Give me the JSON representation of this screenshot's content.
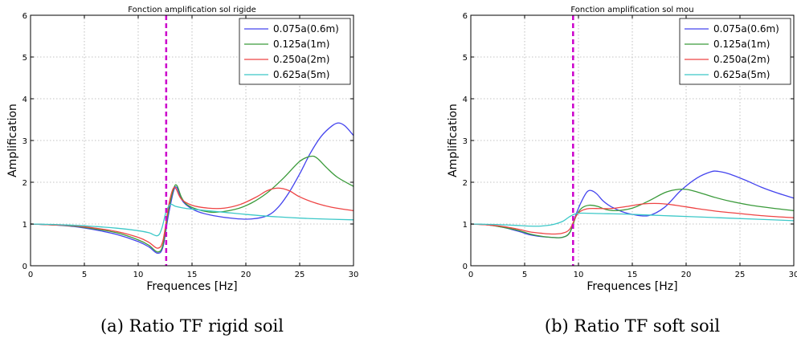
{
  "chart_data": [
    {
      "type": "line",
      "title": "Fonction amplification sol rigide",
      "xlabel": "Frequences [Hz]",
      "ylabel": "Amplification",
      "caption": "(a) Ratio TF rigid soil",
      "xlim": [
        0,
        30
      ],
      "ylim": [
        0,
        6
      ],
      "xticks": [
        "0",
        "5",
        "10",
        "15",
        "20",
        "25",
        "30"
      ],
      "yticks": [
        "0",
        "1",
        "2",
        "3",
        "4",
        "5",
        "6"
      ],
      "grid": true,
      "legend_position": "top-right",
      "vline": {
        "x": 12.6,
        "color": "#cc00cc"
      },
      "series": [
        {
          "name": "0.075a(0.6m)",
          "color": "#4444ee",
          "x": [
            0,
            2,
            4,
            6,
            8,
            10,
            11,
            11.8,
            12.3,
            12.8,
            13.3,
            13.6,
            14,
            14.5,
            15.5,
            17,
            19,
            20.5,
            22,
            23,
            24,
            25,
            26,
            27,
            28,
            28.6,
            29.2,
            30
          ],
          "y": [
            1,
            0.98,
            0.94,
            0.86,
            0.75,
            0.58,
            0.45,
            0.3,
            0.45,
            1.2,
            1.8,
            1.87,
            1.6,
            1.45,
            1.3,
            1.2,
            1.13,
            1.12,
            1.2,
            1.4,
            1.75,
            2.2,
            2.7,
            3.1,
            3.35,
            3.42,
            3.35,
            3.12
          ]
        },
        {
          "name": "0.125a(1m)",
          "color": "#3a9a3a",
          "x": [
            0,
            2,
            4,
            6,
            8,
            10,
            11,
            11.8,
            12.3,
            12.8,
            13.3,
            13.6,
            14,
            14.5,
            15.5,
            17,
            19,
            20.5,
            22,
            23.5,
            25,
            26,
            26.6,
            27.5,
            28.5,
            30
          ],
          "y": [
            1,
            0.98,
            0.95,
            0.88,
            0.79,
            0.62,
            0.49,
            0.33,
            0.5,
            1.3,
            1.85,
            1.92,
            1.65,
            1.47,
            1.35,
            1.28,
            1.35,
            1.5,
            1.75,
            2.1,
            2.5,
            2.62,
            2.58,
            2.35,
            2.12,
            1.9
          ]
        },
        {
          "name": "0.250a(2m)",
          "color": "#ee4444",
          "x": [
            0,
            2,
            4,
            6,
            8,
            10,
            11,
            11.8,
            12.3,
            12.8,
            13.2,
            13.5,
            14,
            15,
            16.5,
            18,
            19.5,
            21,
            22,
            23,
            24,
            25,
            26.5,
            28,
            30
          ],
          "y": [
            1,
            0.98,
            0.96,
            0.9,
            0.82,
            0.68,
            0.56,
            0.42,
            0.6,
            1.4,
            1.82,
            1.85,
            1.6,
            1.45,
            1.38,
            1.38,
            1.47,
            1.65,
            1.8,
            1.86,
            1.8,
            1.65,
            1.5,
            1.4,
            1.32
          ]
        },
        {
          "name": "0.625a(5m)",
          "color": "#3cc8c8",
          "x": [
            0,
            2,
            4,
            6,
            8,
            10,
            11,
            11.8,
            12.2,
            12.6,
            13,
            13.5,
            14.5,
            16,
            18,
            20,
            23,
            26,
            30
          ],
          "y": [
            1,
            0.99,
            0.97,
            0.94,
            0.9,
            0.84,
            0.79,
            0.72,
            0.9,
            1.3,
            1.47,
            1.42,
            1.37,
            1.33,
            1.28,
            1.23,
            1.17,
            1.13,
            1.1
          ]
        }
      ]
    },
    {
      "type": "line",
      "title": "Fonction amplification sol mou",
      "xlabel": "Frequences [Hz]",
      "ylabel": "Amplification",
      "caption": "(b) Ratio TF soft soil",
      "xlim": [
        0,
        30
      ],
      "ylim": [
        0,
        6
      ],
      "xticks": [
        "0",
        "5",
        "10",
        "15",
        "20",
        "25",
        "30"
      ],
      "yticks": [
        "0",
        "1",
        "2",
        "3",
        "4",
        "5",
        "6"
      ],
      "grid": true,
      "legend_position": "top-right",
      "vline": {
        "x": 9.5,
        "color": "#cc00cc"
      },
      "series": [
        {
          "name": "0.075a(0.6m)",
          "color": "#4444ee",
          "x": [
            0,
            1.5,
            3,
            4.5,
            5.5,
            6.5,
            7.5,
            8.5,
            9.2,
            9.8,
            10.3,
            10.8,
            11.2,
            11.7,
            12.3,
            13,
            14,
            15,
            16.5,
            18,
            19.5,
            21,
            22.3,
            23,
            24,
            25.5,
            27,
            28.5,
            30
          ],
          "y": [
            1,
            0.98,
            0.92,
            0.82,
            0.74,
            0.7,
            0.68,
            0.68,
            0.8,
            1.25,
            1.55,
            1.77,
            1.8,
            1.72,
            1.55,
            1.42,
            1.3,
            1.23,
            1.2,
            1.4,
            1.8,
            2.1,
            2.25,
            2.26,
            2.2,
            2.05,
            1.88,
            1.74,
            1.62
          ]
        },
        {
          "name": "0.125a(1m)",
          "color": "#3a9a3a",
          "x": [
            0,
            1.5,
            3,
            4.5,
            5.5,
            6.5,
            7.5,
            8.5,
            9.2,
            9.8,
            10.3,
            11,
            11.8,
            12.5,
            13.5,
            15,
            16.5,
            18,
            19,
            20,
            21,
            22.5,
            24,
            26,
            28,
            30
          ],
          "y": [
            1,
            0.98,
            0.92,
            0.84,
            0.76,
            0.71,
            0.68,
            0.68,
            0.8,
            1.2,
            1.38,
            1.45,
            1.42,
            1.35,
            1.32,
            1.38,
            1.55,
            1.75,
            1.82,
            1.83,
            1.77,
            1.65,
            1.55,
            1.45,
            1.38,
            1.32
          ]
        },
        {
          "name": "0.250a(2m)",
          "color": "#ee4444",
          "x": [
            0,
            1.5,
            3,
            4.5,
            5.5,
            6.5,
            7.5,
            8.5,
            9.2,
            9.8,
            10.3,
            11,
            12,
            13,
            14.5,
            16,
            17.5,
            19,
            21,
            23,
            25,
            27,
            30
          ],
          "y": [
            1,
            0.98,
            0.94,
            0.87,
            0.81,
            0.78,
            0.76,
            0.78,
            0.88,
            1.2,
            1.32,
            1.37,
            1.37,
            1.37,
            1.42,
            1.48,
            1.49,
            1.45,
            1.37,
            1.3,
            1.25,
            1.2,
            1.15
          ]
        },
        {
          "name": "0.625a(5m)",
          "color": "#3cc8c8",
          "x": [
            0,
            2,
            4,
            5.5,
            6.5,
            7.5,
            8.5,
            9.2,
            9.8,
            10.5,
            12,
            14,
            16,
            18,
            20,
            23,
            26,
            30
          ],
          "y": [
            1,
            0.99,
            0.97,
            0.95,
            0.95,
            0.98,
            1.06,
            1.18,
            1.25,
            1.26,
            1.25,
            1.24,
            1.22,
            1.2,
            1.18,
            1.15,
            1.12,
            1.08
          ]
        }
      ]
    }
  ]
}
